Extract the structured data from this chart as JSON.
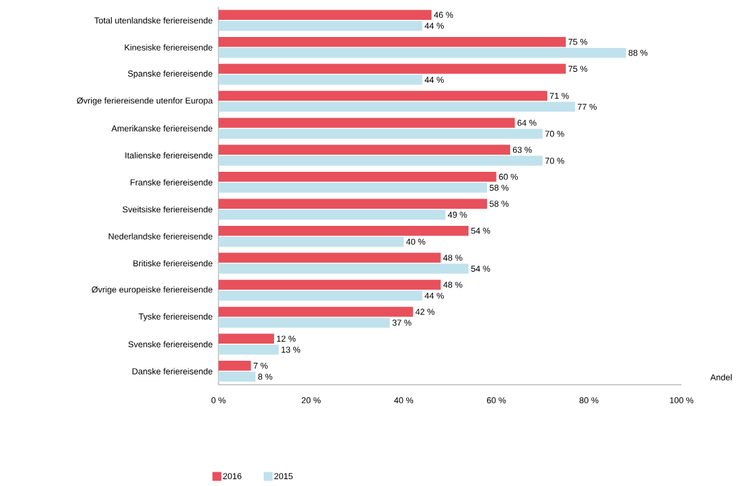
{
  "chart_data": {
    "type": "bar",
    "orientation": "horizontal",
    "xlabel": "Andel",
    "categories": [
      "Total utenlandske feriereisende",
      "Kinesiske feriereisende",
      "Spanske feriereisende",
      "Øvrige feriereisende utenfor Europa",
      "Amerikanske feriereisende",
      "Italienske feriereisende",
      "Franske feriereisende",
      "Sveitsiske feriereisende",
      "Nederlandske feriereisende",
      "Britiske feriereisende",
      "Øvrige europeiske feriereisende",
      "Tyske feriereisende",
      "Svenske feriereisende",
      "Danske feriereisende"
    ],
    "series": [
      {
        "name": "2016",
        "color": "#e8505b",
        "values": [
          46,
          75,
          75,
          71,
          64,
          63,
          60,
          58,
          54,
          48,
          48,
          42,
          12,
          7
        ],
        "value_labels": [
          "46 %",
          "75 %",
          "75 %",
          "71 %",
          "64 %",
          "63 %",
          "60 %",
          "58 %",
          "54 %",
          "48 %",
          "48 %",
          "42 %",
          "12 %",
          "7 %"
        ]
      },
      {
        "name": "2015",
        "color": "#c0e2ec",
        "values": [
          44,
          88,
          44,
          77,
          70,
          70,
          58,
          49,
          40,
          54,
          44,
          37,
          13,
          8
        ],
        "value_labels": [
          "44 %",
          "88 %",
          "44 %",
          "77 %",
          "70 %",
          "70 %",
          "58 %",
          "49 %",
          "40 %",
          "54 %",
          "44 %",
          "37 %",
          "13 %",
          "8 %"
        ]
      }
    ],
    "xlim": [
      0,
      100
    ],
    "xticks": [
      {
        "value": 0,
        "label": "0 %"
      },
      {
        "value": 20,
        "label": "20 %"
      },
      {
        "value": 40,
        "label": "40 %"
      },
      {
        "value": 60,
        "label": "60 %"
      },
      {
        "value": 80,
        "label": "80 %"
      },
      {
        "value": 100,
        "label": "100 %"
      }
    ],
    "grid": false,
    "legend": "bottom"
  }
}
